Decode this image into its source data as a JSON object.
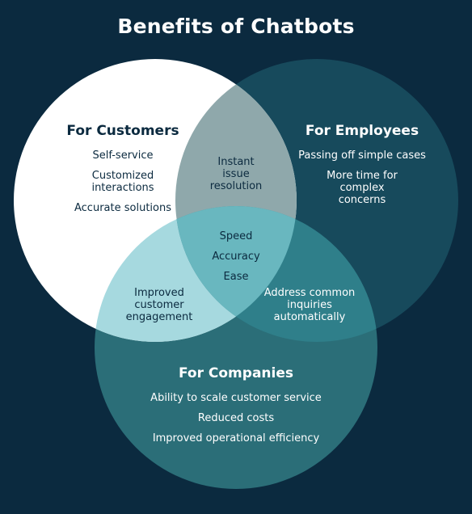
{
  "title": "Benefits of Chatbots",
  "colors": {
    "background": "#0b2a3f",
    "customers": "#ffffff",
    "employees": "#174a5c",
    "companies": "#2b6e78",
    "customers_employees": "#8fa8ab",
    "customers_companies": "#a6d9df",
    "employees_companies": "#2f7f8a",
    "center": "#69b7bf"
  },
  "customers": {
    "heading": "For Customers",
    "items": [
      "Self-service",
      "Customized interactions",
      "Accurate solutions"
    ]
  },
  "employees": {
    "heading": "For Employees",
    "items": [
      "Passing off simple cases",
      "More time for complex concerns"
    ]
  },
  "companies": {
    "heading": "For Companies",
    "items": [
      "Ability to scale customer service",
      "Reduced costs",
      "Improved operational efficiency"
    ]
  },
  "customers_employees": {
    "text": "Instant issue resolution"
  },
  "customers_companies": {
    "text": "Improved customer engagement"
  },
  "employees_companies": {
    "text": "Address common inquiries automatically"
  },
  "center": {
    "items": [
      "Speed",
      "Accuracy",
      "Ease"
    ]
  }
}
